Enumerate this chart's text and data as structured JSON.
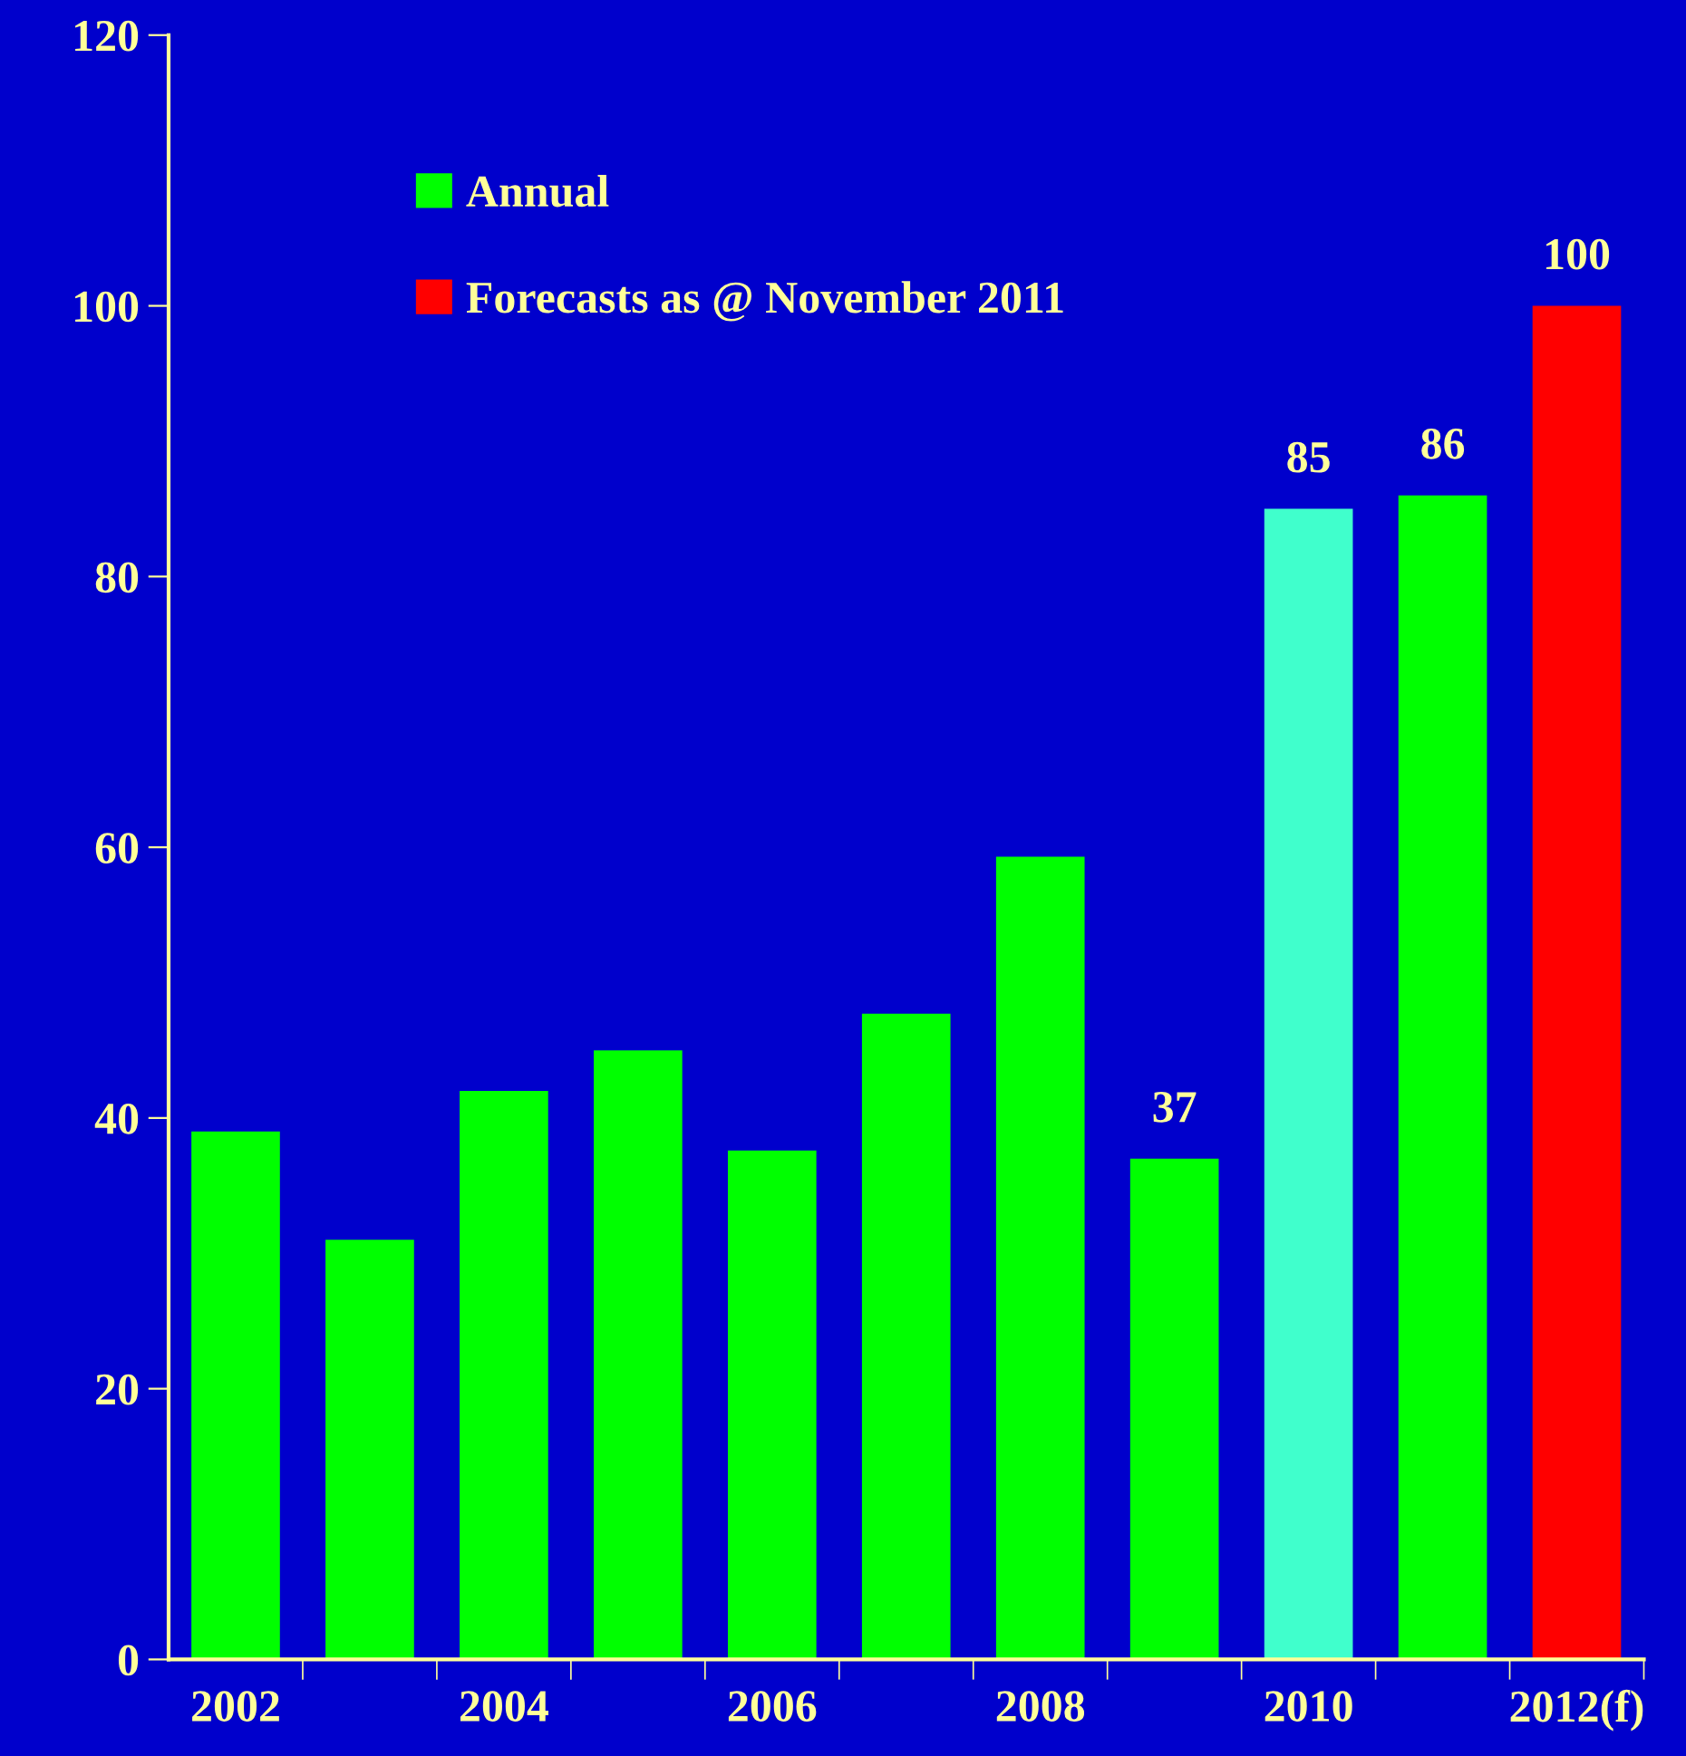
{
  "chart_data": {
    "type": "bar",
    "categories": [
      "2002",
      null,
      "2004",
      null,
      "2006",
      null,
      "2008",
      null,
      "2010",
      null,
      "2012(f)"
    ],
    "series": [
      {
        "name": "Annual",
        "color": "#00ff00",
        "colors": [
          "#00ff00",
          "#00ff00",
          "#00ff00",
          "#00ff00",
          "#00ff00",
          "#00ff00",
          "#00ff00",
          "#00ff00",
          "#40ffcc",
          "#00ff00",
          null
        ],
        "values": [
          39,
          31,
          42,
          45,
          37.6,
          47.7,
          59.3,
          37,
          85,
          86,
          null
        ],
        "value_labels": [
          null,
          null,
          null,
          null,
          null,
          null,
          null,
          "37",
          "85",
          "86",
          null
        ]
      },
      {
        "name": "Forecasts as @ November 2011",
        "color": "#ff0000",
        "values": [
          null,
          null,
          null,
          null,
          null,
          null,
          null,
          null,
          null,
          null,
          100
        ],
        "value_labels": [
          null,
          null,
          null,
          null,
          null,
          null,
          null,
          null,
          null,
          null,
          "100"
        ]
      }
    ],
    "ylim": [
      0,
      120
    ],
    "yticks": [
      0,
      20,
      40,
      60,
      80,
      100,
      120
    ],
    "grid": false,
    "legend": "top left"
  }
}
